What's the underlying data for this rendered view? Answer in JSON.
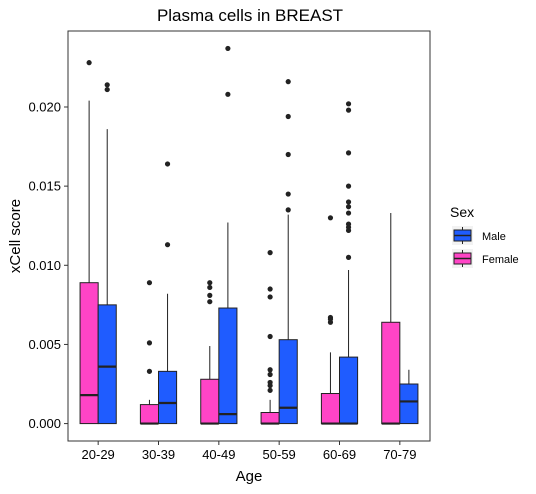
{
  "chart_data": {
    "type": "boxplot",
    "title": "Plasma cells in BREAST",
    "xlabel": "Age",
    "ylabel": "xCell score",
    "ylim": [
      -0.0011,
      0.0248
    ],
    "yticks": [
      0.0,
      0.005,
      0.01,
      0.015,
      0.02
    ],
    "ytick_labels": [
      "0.000",
      "0.005",
      "0.010",
      "0.015",
      "0.020"
    ],
    "categories": [
      "20-29",
      "30-39",
      "40-49",
      "50-59",
      "60-69",
      "70-79"
    ],
    "grid": false,
    "legend": {
      "title": "Sex",
      "position": "right",
      "entries": [
        {
          "name": "Male",
          "color": "#1f5cff"
        },
        {
          "name": "Female",
          "color": "#ff44c6"
        }
      ]
    },
    "series": [
      {
        "name": "Female",
        "color": "#ff44c6",
        "boxes": [
          {
            "category": "20-29",
            "min": 0.0,
            "q1": 0.0,
            "median": 0.0018,
            "q3": 0.0089,
            "max": 0.0204,
            "outliers": [
              0.0228
            ]
          },
          {
            "category": "30-39",
            "min": 0.0,
            "q1": 0.0,
            "median": 0.0,
            "q3": 0.0012,
            "max": 0.0015,
            "outliers": [
              0.0033,
              0.0051,
              0.0089
            ]
          },
          {
            "category": "40-49",
            "min": 0.0,
            "q1": 0.0,
            "median": 0.0,
            "q3": 0.0028,
            "max": 0.0049,
            "outliers": [
              0.0077,
              0.0081,
              0.0086,
              0.0089
            ]
          },
          {
            "category": "50-59",
            "min": 0.0,
            "q1": 0.0,
            "median": 0.0,
            "q3": 0.0007,
            "max": 0.0015,
            "outliers": [
              0.0021,
              0.0024,
              0.0026,
              0.0031,
              0.0034,
              0.0055,
              0.008,
              0.0085,
              0.0108
            ]
          },
          {
            "category": "60-69",
            "min": 0.0,
            "q1": 0.0,
            "median": 0.0,
            "q3": 0.0019,
            "max": 0.0045,
            "outliers": [
              0.0064,
              0.0066,
              0.0067,
              0.013
            ]
          },
          {
            "category": "70-79",
            "min": 0.0,
            "q1": 0.0,
            "median": 0.0,
            "q3": 0.0064,
            "max": 0.0133,
            "outliers": []
          }
        ]
      },
      {
        "name": "Male",
        "color": "#1f5cff",
        "boxes": [
          {
            "category": "20-29",
            "min": 0.0,
            "q1": 0.0,
            "median": 0.0036,
            "q3": 0.0075,
            "max": 0.0186,
            "outliers": [
              0.0211,
              0.0214
            ]
          },
          {
            "category": "30-39",
            "min": 0.0,
            "q1": 0.0,
            "median": 0.0013,
            "q3": 0.0033,
            "max": 0.0082,
            "outliers": [
              0.0113,
              0.0164
            ]
          },
          {
            "category": "40-49",
            "min": 0.0,
            "q1": 0.0,
            "median": 0.0006,
            "q3": 0.0073,
            "max": 0.0127,
            "outliers": [
              0.0208,
              0.0237
            ]
          },
          {
            "category": "50-59",
            "min": 0.0,
            "q1": 0.0,
            "median": 0.001,
            "q3": 0.0053,
            "max": 0.0132,
            "outliers": [
              0.0135,
              0.0145,
              0.017,
              0.0194,
              0.0216
            ]
          },
          {
            "category": "60-69",
            "min": 0.0,
            "q1": 0.0,
            "median": 0.0,
            "q3": 0.0042,
            "max": 0.0097,
            "outliers": [
              0.0105,
              0.0122,
              0.0124,
              0.0126,
              0.0133,
              0.0137,
              0.014,
              0.015,
              0.0171,
              0.0198,
              0.0202
            ]
          },
          {
            "category": "70-79",
            "min": 0.0,
            "q1": 0.0,
            "median": 0.0014,
            "q3": 0.0025,
            "max": 0.0034,
            "outliers": []
          }
        ]
      }
    ]
  }
}
